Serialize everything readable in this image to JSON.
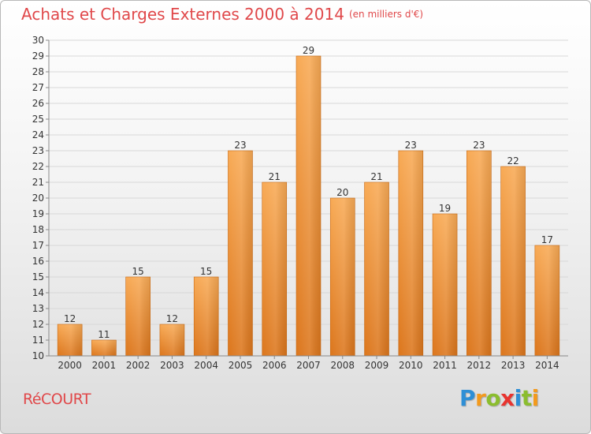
{
  "title": "Achats et Charges Externes 2000 à 2014",
  "unit_note": "(en milliers d'€)",
  "place_name": "RéCOURT",
  "brand": {
    "letters": [
      "P",
      "r",
      "o",
      "x",
      "i",
      "t",
      "i"
    ],
    "colors": [
      "#2e8fd6",
      "#f39a1d",
      "#8bbd2e",
      "#e8342f",
      "#2e8fd6",
      "#8bbd2e",
      "#f39a1d"
    ]
  },
  "colors": {
    "title": "#e0484a",
    "bar_light": "#f7a650",
    "bar_dark": "#e07a1e",
    "grid": "#d8d8d8",
    "axis": "#888888"
  },
  "chart_data": {
    "type": "bar",
    "categories": [
      "2000",
      "2001",
      "2002",
      "2003",
      "2004",
      "2005",
      "2006",
      "2007",
      "2008",
      "2009",
      "2010",
      "2011",
      "2012",
      "2013",
      "2014"
    ],
    "values": [
      12,
      11,
      15,
      12,
      15,
      23,
      21,
      29,
      20,
      21,
      23,
      19,
      23,
      22,
      17
    ],
    "ylim": [
      10,
      30
    ],
    "yticks": [
      10,
      11,
      12,
      13,
      14,
      15,
      16,
      17,
      18,
      19,
      20,
      21,
      22,
      23,
      24,
      25,
      26,
      27,
      28,
      29,
      30
    ],
    "grid": true,
    "data_labels": true
  }
}
